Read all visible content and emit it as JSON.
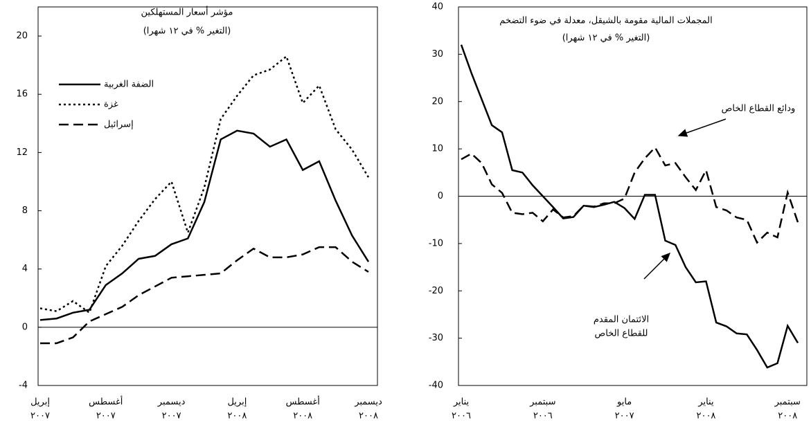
{
  "chart_data": [
    {
      "type": "line",
      "title": "مؤشر أسعار المستهلكين",
      "subtitle": "(التغير % في ١٢ شهرا)",
      "categories": [
        "إبريل",
        null,
        null,
        null,
        "أغسطس",
        null,
        null,
        null,
        "ديسمبر",
        null,
        null,
        null,
        "إبريل",
        null,
        null,
        null,
        "أغسطس",
        null,
        null,
        null,
        "ديسمبر"
      ],
      "category_years": [
        "٢٠٠٧",
        null,
        null,
        null,
        "٢٠٠٧",
        null,
        null,
        null,
        "٢٠٠٧",
        null,
        null,
        null,
        "٢٠٠٨",
        null,
        null,
        null,
        "٢٠٠٨",
        null,
        null,
        null,
        "٢٠٠٨"
      ],
      "ylim": [
        -4,
        22
      ],
      "yticks": [
        -4,
        0,
        4,
        8,
        12,
        16,
        20
      ],
      "legend": "upper left",
      "series": [
        {
          "name": "الضفة الغربية",
          "color": "#000000",
          "style": "solid",
          "values": [
            0.5,
            0.6,
            1.0,
            1.2,
            2.9,
            3.7,
            4.7,
            4.9,
            5.7,
            6.1,
            8.6,
            12.9,
            13.5,
            13.3,
            12.4,
            12.9,
            10.8,
            11.4,
            8.7,
            6.3,
            4.5
          ]
        },
        {
          "name": "غزة",
          "color": "#000000",
          "style": "dotted",
          "values": [
            1.3,
            1.1,
            1.8,
            1.0,
            4.2,
            5.6,
            7.3,
            8.8,
            10.0,
            6.5,
            9.6,
            14.3,
            15.9,
            17.3,
            17.7,
            18.6,
            15.4,
            16.6,
            13.6,
            12.2,
            10.3
          ]
        },
        {
          "name": "إسرائيل",
          "color": "#000000",
          "style": "dashed",
          "values": [
            -1.1,
            -1.1,
            -0.7,
            0.4,
            0.9,
            1.4,
            2.2,
            2.8,
            3.4,
            3.5,
            3.6,
            3.7,
            4.6,
            5.4,
            4.8,
            4.8,
            5.0,
            5.5,
            5.5,
            4.5,
            3.8
          ]
        }
      ]
    },
    {
      "type": "line",
      "title": "المجملات المالية مقومة بالشيقل، معدلة في ضوء التضخم",
      "subtitle": "(التغير % في ١٢ شهرا)",
      "categories": [
        "يناير",
        null,
        null,
        null,
        null,
        null,
        null,
        null,
        "سبتمبر",
        null,
        null,
        null,
        null,
        null,
        null,
        null,
        "مايو",
        null,
        null,
        null,
        null,
        null,
        null,
        null,
        "يناير",
        null,
        null,
        null,
        null,
        null,
        null,
        null,
        "سبتمبر",
        null
      ],
      "category_years": [
        "٢٠٠٦",
        null,
        null,
        null,
        null,
        null,
        null,
        null,
        "٢٠٠٦",
        null,
        null,
        null,
        null,
        null,
        null,
        null,
        "٢٠٠٧",
        null,
        null,
        null,
        null,
        null,
        null,
        null,
        "٢٠٠٨",
        null,
        null,
        null,
        null,
        null,
        null,
        null,
        "٢٠٠٨",
        null
      ],
      "ylim": [
        -40,
        40
      ],
      "yticks": [
        -40,
        -30,
        -20,
        -10,
        0,
        10,
        20,
        30,
        40
      ],
      "annotations": [
        "ودائع القطاع الخاص",
        "الائتمان المقدم",
        "للقطاع الخاص"
      ],
      "series": [
        {
          "color": "#000000",
          "style": "solid",
          "values": [
            32,
            26,
            20.5,
            15,
            13.5,
            5.5,
            5,
            2.3,
            0,
            -2.3,
            -4.7,
            -4.4,
            -2,
            -2.3,
            -1.8,
            -1.2,
            -2.5,
            -4.8,
            0.3,
            0.3,
            -9.4,
            -10.3,
            -15,
            -18.2,
            -18,
            -26.7,
            -27.5,
            -29,
            -29.2,
            -32.5,
            -36.2,
            -35.3,
            -27.4,
            -31
          ]
        },
        {
          "color": "#000000",
          "style": "dashed",
          "values": [
            7.8,
            9,
            7,
            2.5,
            0.7,
            -3.5,
            -3.8,
            -3.5,
            -5.3,
            -2.8,
            -4.5,
            -4.2,
            -2,
            -2.2,
            -1.5,
            -1.5,
            -0.5,
            5,
            8,
            10.3,
            6.5,
            7,
            4,
            1.3,
            5.5,
            -2.3,
            -3,
            -4.5,
            -5,
            -9.8,
            -7.7,
            -8.7,
            0.8,
            -5.5
          ]
        }
      ]
    }
  ]
}
